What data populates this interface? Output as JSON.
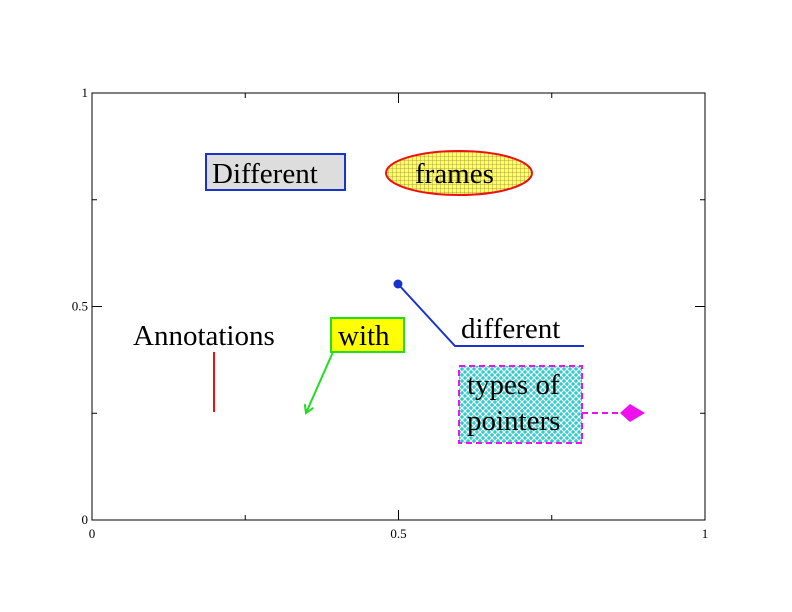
{
  "chart_data": {
    "type": "annotations",
    "xlim": [
      0,
      1
    ],
    "ylim": [
      0,
      1
    ],
    "xticks": [
      0,
      0.5,
      1
    ],
    "yticks": [
      0,
      0.5,
      1
    ],
    "xminorticks": [
      0.25,
      0.75
    ],
    "yminorticks": [
      0.25,
      0.75
    ],
    "annotations": [
      "Different",
      "frames",
      "Annotations",
      "with",
      "different",
      "types of",
      "pointers"
    ]
  }
}
